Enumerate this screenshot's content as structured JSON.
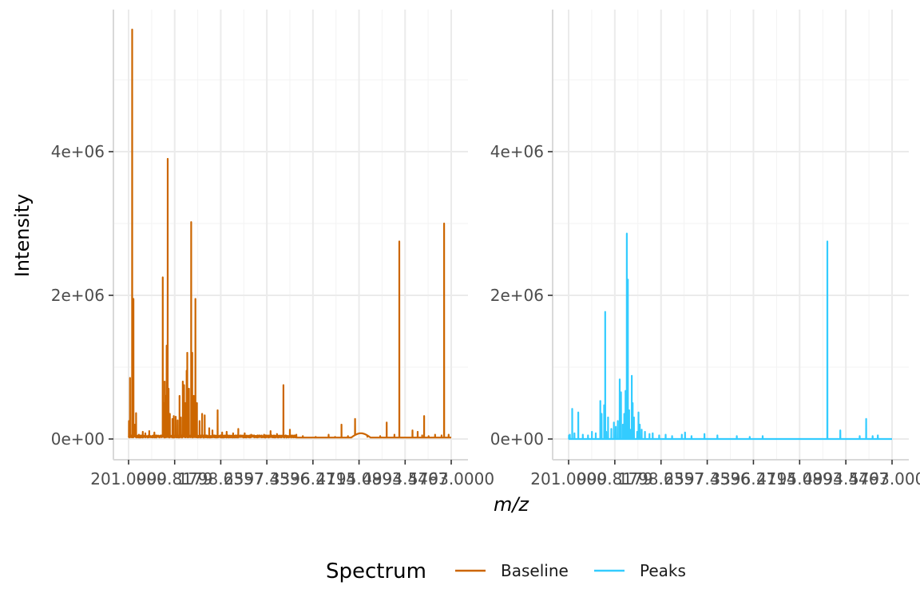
{
  "chart_data": {
    "type": "line",
    "xlabel": "m/z",
    "ylabel": "Intensity",
    "x_tick_labels": [
      "201.0000",
      "999.8179",
      "1798.6357",
      "2597.4536",
      "3396.2714",
      "4195.0893",
      "4994.4467",
      "5793.0000"
    ],
    "x_tick_values": [
      201.0,
      999.8179,
      1798.6357,
      2597.4536,
      3396.2714,
      4195.0893,
      4994.4467,
      5793.0
    ],
    "y_tick_labels": [
      "0e+00",
      "2e+06",
      "4e+06"
    ],
    "y_tick_values": [
      0,
      2000000,
      4000000
    ],
    "xlim": [
      0,
      5000
    ],
    "ylim": [
      -290000,
      5900000
    ],
    "grid": true,
    "legend": {
      "title": "Spectrum",
      "position": "bottom",
      "entries": [
        {
          "label": "Baseline",
          "color": "#CC6600"
        },
        {
          "label": "Peaks",
          "color": "#33CCFF"
        }
      ]
    },
    "panels": [
      {
        "series": "Baseline",
        "color": "#CC6600",
        "baseline": 20000,
        "bumps": [
          [
            3450,
            3750,
            60000
          ]
        ],
        "peaks": [
          [
            5,
            250000
          ],
          [
            22,
            850000
          ],
          [
            55,
            5700000
          ],
          [
            75,
            1950000
          ],
          [
            95,
            200000
          ],
          [
            115,
            360000
          ],
          [
            160,
            60000
          ],
          [
            220,
            100000
          ],
          [
            260,
            80000
          ],
          [
            320,
            110000
          ],
          [
            400,
            90000
          ],
          [
            530,
            2250000
          ],
          [
            545,
            500000
          ],
          [
            560,
            800000
          ],
          [
            575,
            600000
          ],
          [
            590,
            1300000
          ],
          [
            605,
            3900000
          ],
          [
            620,
            700000
          ],
          [
            640,
            350000
          ],
          [
            680,
            280000
          ],
          [
            700,
            320000
          ],
          [
            730,
            310000
          ],
          [
            760,
            260000
          ],
          [
            790,
            600000
          ],
          [
            810,
            300000
          ],
          [
            840,
            800000
          ],
          [
            860,
            750000
          ],
          [
            880,
            500000
          ],
          [
            900,
            950000
          ],
          [
            910,
            1200000
          ],
          [
            935,
            700000
          ],
          [
            970,
            3020000
          ],
          [
            985,
            1200000
          ],
          [
            1010,
            600000
          ],
          [
            1035,
            1950000
          ],
          [
            1060,
            500000
          ],
          [
            1100,
            250000
          ],
          [
            1140,
            350000
          ],
          [
            1180,
            330000
          ],
          [
            1250,
            150000
          ],
          [
            1300,
            120000
          ],
          [
            1380,
            400000
          ],
          [
            1450,
            90000
          ],
          [
            1520,
            100000
          ],
          [
            1620,
            80000
          ],
          [
            1700,
            140000
          ],
          [
            1800,
            80000
          ],
          [
            1900,
            60000
          ],
          [
            2000,
            50000
          ],
          [
            2100,
            60000
          ],
          [
            2200,
            110000
          ],
          [
            2300,
            70000
          ],
          [
            2400,
            750000
          ],
          [
            2500,
            130000
          ],
          [
            2600,
            60000
          ],
          [
            2700,
            40000
          ],
          [
            2900,
            30000
          ],
          [
            3100,
            60000
          ],
          [
            3200,
            30000
          ],
          [
            3300,
            200000
          ],
          [
            3400,
            40000
          ],
          [
            3510,
            280000
          ],
          [
            3700,
            30000
          ],
          [
            3900,
            40000
          ],
          [
            4000,
            230000
          ],
          [
            4120,
            60000
          ],
          [
            4195,
            2750000
          ],
          [
            4400,
            120000
          ],
          [
            4480,
            100000
          ],
          [
            4550,
            50000
          ],
          [
            4580,
            320000
          ],
          [
            4650,
            40000
          ],
          [
            4750,
            60000
          ],
          [
            4850,
            50000
          ],
          [
            4890,
            3000000
          ],
          [
            4960,
            60000
          ]
        ]
      },
      {
        "series": "Peaks",
        "color": "#33CCFF",
        "baseline": 0,
        "bumps": [],
        "peaks": [
          [
            5,
            50000
          ],
          [
            20,
            60000
          ],
          [
            55,
            420000
          ],
          [
            90,
            80000
          ],
          [
            150,
            370000
          ],
          [
            220,
            60000
          ],
          [
            300,
            50000
          ],
          [
            360,
            100000
          ],
          [
            420,
            80000
          ],
          [
            490,
            530000
          ],
          [
            510,
            350000
          ],
          [
            550,
            470000
          ],
          [
            565,
            1770000
          ],
          [
            580,
            100000
          ],
          [
            610,
            300000
          ],
          [
            660,
            140000
          ],
          [
            700,
            230000
          ],
          [
            730,
            170000
          ],
          [
            760,
            250000
          ],
          [
            790,
            830000
          ],
          [
            810,
            650000
          ],
          [
            840,
            200000
          ],
          [
            860,
            350000
          ],
          [
            880,
            670000
          ],
          [
            900,
            2860000
          ],
          [
            915,
            2220000
          ],
          [
            935,
            400000
          ],
          [
            950,
            130000
          ],
          [
            970,
            100000
          ],
          [
            975,
            880000
          ],
          [
            990,
            500000
          ],
          [
            1010,
            300000
          ],
          [
            1060,
            100000
          ],
          [
            1080,
            370000
          ],
          [
            1100,
            200000
          ],
          [
            1130,
            130000
          ],
          [
            1180,
            100000
          ],
          [
            1250,
            70000
          ],
          [
            1300,
            80000
          ],
          [
            1400,
            50000
          ],
          [
            1500,
            60000
          ],
          [
            1600,
            40000
          ],
          [
            1750,
            60000
          ],
          [
            1800,
            90000
          ],
          [
            1900,
            40000
          ],
          [
            2100,
            70000
          ],
          [
            2300,
            50000
          ],
          [
            2600,
            40000
          ],
          [
            2800,
            30000
          ],
          [
            3000,
            40000
          ],
          [
            4000,
            2750000
          ],
          [
            4200,
            120000
          ],
          [
            4500,
            40000
          ],
          [
            4600,
            280000
          ],
          [
            4700,
            40000
          ],
          [
            4780,
            50000
          ]
        ]
      }
    ]
  }
}
